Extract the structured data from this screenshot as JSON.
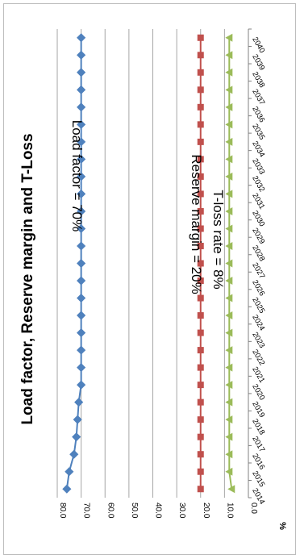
{
  "chart_data": {
    "type": "line",
    "title": "Load factor, Reserve margin and T-Loss",
    "ylabel": "%",
    "xlabel": "",
    "ylim": [
      0,
      80
    ],
    "yticks": [
      "0.0",
      "10.0",
      "20.0",
      "30.0",
      "40.0",
      "50.0",
      "60.0",
      "70.0",
      "80.0"
    ],
    "grid": true,
    "orientation": "rotated-90-clockwise",
    "categories": [
      "2014",
      "2015",
      "2016",
      "2017",
      "2018",
      "2019",
      "2020",
      "2021",
      "2022",
      "2023",
      "2024",
      "2025",
      "2026",
      "2027",
      "2028",
      "2029",
      "2030",
      "2031",
      "2032",
      "2033",
      "2034",
      "2035",
      "2036",
      "2037",
      "2038",
      "2039",
      "2040"
    ],
    "series": [
      {
        "color": "#4f81bd",
        "marker": "diamond",
        "values": [
          76,
          75,
          73,
          72,
          71.5,
          71,
          70,
          70,
          70,
          70,
          70,
          70,
          70,
          70,
          70,
          70,
          70,
          70,
          70,
          70,
          70,
          70,
          70,
          70,
          70,
          70,
          70
        ]
      },
      {
        "color": "#c0504d",
        "marker": "square",
        "values": [
          20,
          20,
          20,
          20,
          20,
          20,
          20,
          20,
          20,
          20,
          20,
          20,
          20,
          20,
          20,
          20,
          20,
          20,
          20,
          20,
          20,
          20,
          20,
          20,
          20,
          20,
          20
        ]
      },
      {
        "color": "#9bbb59",
        "marker": "triangle",
        "values": [
          7,
          8,
          8,
          8,
          8,
          8,
          8,
          8,
          8,
          8,
          8,
          8,
          8,
          8,
          8,
          8,
          8,
          8,
          8,
          8,
          8,
          8,
          8,
          8,
          8,
          8,
          8
        ]
      }
    ],
    "annotations": [
      {
        "text": "Load factor = 70%"
      },
      {
        "text": "Reserve margin = 20%"
      },
      {
        "text": "T-loss rate = 8%"
      }
    ]
  }
}
